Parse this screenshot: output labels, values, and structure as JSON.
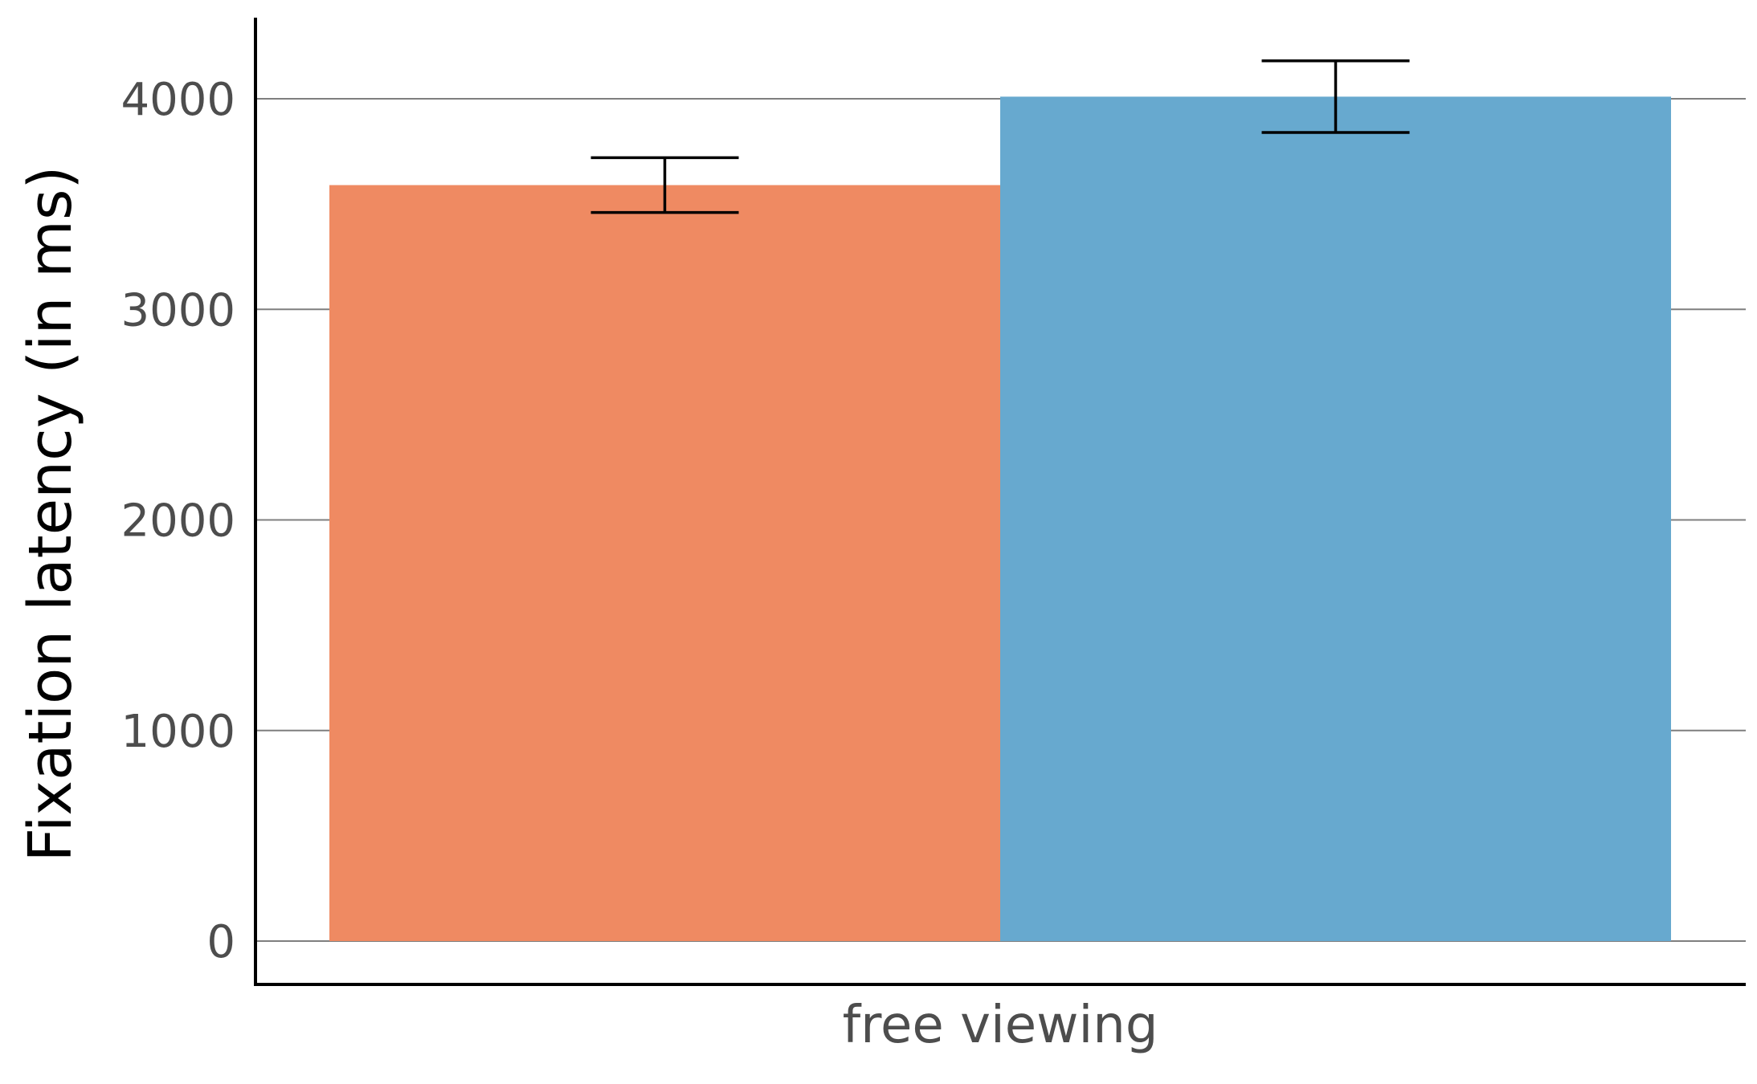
{
  "chart_data": {
    "type": "bar",
    "title": "",
    "xlabel": "",
    "ylabel": "Fixation latency (in ms)",
    "categories": [
      "free viewing"
    ],
    "ylim": [
      -200,
      4380
    ],
    "yticks": [
      0,
      1000,
      2000,
      3000,
      4000
    ],
    "ytick_labels": [
      "0",
      "1000",
      "2000",
      "3000",
      "4000"
    ],
    "grid": "horizontal major",
    "legend": "none",
    "series": [
      {
        "values": [
          3590
        ],
        "error_low": [
          3460
        ],
        "error_high": [
          3720
        ],
        "color": "#ef8a62"
      },
      {
        "values": [
          4010
        ],
        "error_low": [
          3840
        ],
        "error_high": [
          4180
        ],
        "color": "#67a9cf"
      }
    ]
  }
}
